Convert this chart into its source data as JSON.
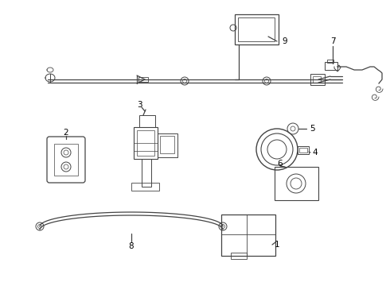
{
  "background_color": "#ffffff",
  "line_color": "#444444",
  "label_color": "#000000",
  "fig_width": 4.9,
  "fig_height": 3.6,
  "dpi": 100
}
